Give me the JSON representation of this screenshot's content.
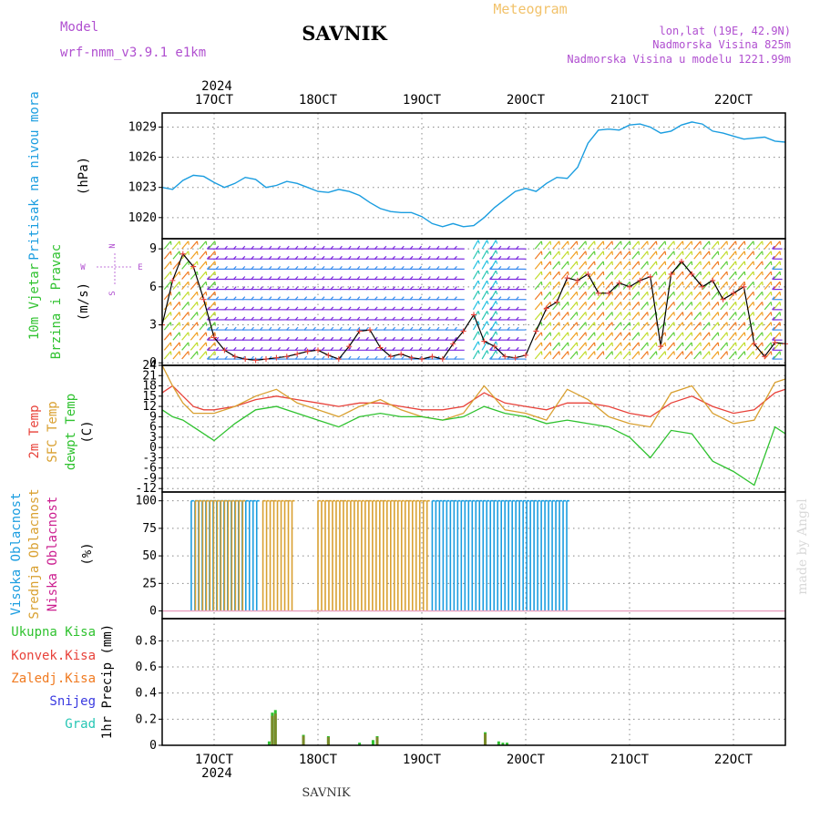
{
  "header": {
    "model_label": "Model",
    "model_name": "wrf-nmm_v3.9.1 e1km",
    "station": "SAVNIK",
    "meteogram": "Meteogram",
    "coords": "lon,lat (19E, 42.9N)",
    "elevation": "Nadmorska Visina 825m",
    "model_elevation": "Nadmorska Visina u modelu 1221.99m",
    "footer_station": "SAVNIK",
    "watermark": "made by Angel",
    "year_top": "2024",
    "year_bottom": "2024"
  },
  "colors": {
    "pressure": "#1a9de0",
    "temp2m": "#e8423a",
    "sfc": "#d9a030",
    "dew": "#2fc22f",
    "high_cloud": "#1a9de0",
    "mid_cloud": "#d9a030",
    "low_cloud": "#cc2090",
    "precip_total": "#2fc22f",
    "precip_conv": "#e8423a",
    "precip_frz": "#f07a20",
    "snow": "#3a3ae0",
    "grad": "#26c6b4",
    "purple_text": "#b04fd0"
  },
  "chart_data": [
    {
      "type": "line",
      "panel": "pressure",
      "ylabel": [
        "Pritisak na nivou mora",
        "(hPa)"
      ],
      "x_ticks": [
        "17OCT",
        "18OCT",
        "19OCT",
        "20OCT",
        "21OCT",
        "22OCT"
      ],
      "yticks": [
        1020,
        1023,
        1026,
        1029
      ],
      "ylim": [
        1017.9,
        1030.4
      ],
      "x_range_days": [
        16.5,
        22.5
      ],
      "grid": true,
      "series": [
        {
          "points": [
            [
              16.5,
              1023.0
            ],
            [
              16.6,
              1022.8
            ],
            [
              16.7,
              1023.7
            ],
            [
              16.8,
              1024.2
            ],
            [
              16.9,
              1024.1
            ],
            [
              17.0,
              1023.5
            ],
            [
              17.1,
              1023.0
            ],
            [
              17.2,
              1023.4
            ],
            [
              17.3,
              1024.0
            ],
            [
              17.4,
              1023.8
            ],
            [
              17.5,
              1023.0
            ],
            [
              17.6,
              1023.2
            ],
            [
              17.7,
              1023.6
            ],
            [
              17.8,
              1023.4
            ],
            [
              17.9,
              1023.0
            ],
            [
              18.0,
              1022.6
            ],
            [
              18.1,
              1022.5
            ],
            [
              18.2,
              1022.8
            ],
            [
              18.3,
              1022.6
            ],
            [
              18.4,
              1022.2
            ],
            [
              18.5,
              1021.5
            ],
            [
              18.6,
              1020.9
            ],
            [
              18.7,
              1020.6
            ],
            [
              18.8,
              1020.5
            ],
            [
              18.9,
              1020.5
            ],
            [
              19.0,
              1020.1
            ],
            [
              19.1,
              1019.4
            ],
            [
              19.2,
              1019.1
            ],
            [
              19.3,
              1019.4
            ],
            [
              19.4,
              1019.1
            ],
            [
              19.5,
              1019.2
            ],
            [
              19.6,
              1020.0
            ],
            [
              19.7,
              1021.0
            ],
            [
              19.8,
              1021.8
            ],
            [
              19.9,
              1022.6
            ],
            [
              20.0,
              1022.9
            ],
            [
              20.1,
              1022.6
            ],
            [
              20.2,
              1023.4
            ],
            [
              20.3,
              1024.0
            ],
            [
              20.4,
              1023.9
            ],
            [
              20.5,
              1025.0
            ],
            [
              20.6,
              1027.4
            ],
            [
              20.7,
              1028.7
            ],
            [
              20.8,
              1028.8
            ],
            [
              20.9,
              1028.7
            ],
            [
              21.0,
              1029.2
            ],
            [
              21.1,
              1029.3
            ],
            [
              21.2,
              1029.0
            ],
            [
              21.3,
              1028.4
            ],
            [
              21.4,
              1028.6
            ],
            [
              21.5,
              1029.2
            ],
            [
              21.6,
              1029.5
            ],
            [
              21.7,
              1029.3
            ],
            [
              21.8,
              1028.6
            ],
            [
              21.9,
              1028.4
            ],
            [
              22.0,
              1028.1
            ],
            [
              22.1,
              1027.8
            ],
            [
              22.2,
              1027.9
            ],
            [
              22.3,
              1028.0
            ],
            [
              22.4,
              1027.6
            ],
            [
              22.5,
              1027.5
            ]
          ]
        }
      ]
    },
    {
      "type": "line",
      "panel": "wind",
      "ylabel": [
        "10m Vjetar",
        "Brzina i Pravac",
        "(m/s)"
      ],
      "compass": [
        "N",
        "W",
        "E",
        "S"
      ],
      "yticks": [
        0,
        3,
        6,
        9
      ],
      "ylim": [
        -0.2,
        9.8
      ],
      "grid": true,
      "series": [
        {
          "name": "speed",
          "color": "#000000",
          "points": [
            [
              16.5,
              3.0
            ],
            [
              16.6,
              6.5
            ],
            [
              16.7,
              8.6
            ],
            [
              16.8,
              7.6
            ],
            [
              16.9,
              5.0
            ],
            [
              17.0,
              2.0
            ],
            [
              17.1,
              1.0
            ],
            [
              17.2,
              0.5
            ],
            [
              17.3,
              0.3
            ],
            [
              17.4,
              0.2
            ],
            [
              17.5,
              0.3
            ],
            [
              17.6,
              0.4
            ],
            [
              17.7,
              0.5
            ],
            [
              17.8,
              0.7
            ],
            [
              17.9,
              0.9
            ],
            [
              18.0,
              1.0
            ],
            [
              18.1,
              0.6
            ],
            [
              18.2,
              0.3
            ],
            [
              18.3,
              1.3
            ],
            [
              18.4,
              2.5
            ],
            [
              18.5,
              2.6
            ],
            [
              18.6,
              1.2
            ],
            [
              18.7,
              0.5
            ],
            [
              18.8,
              0.7
            ],
            [
              18.9,
              0.4
            ],
            [
              19.0,
              0.3
            ],
            [
              19.1,
              0.5
            ],
            [
              19.2,
              0.3
            ],
            [
              19.3,
              1.5
            ],
            [
              19.4,
              2.5
            ],
            [
              19.5,
              3.8
            ],
            [
              19.6,
              1.7
            ],
            [
              19.7,
              1.3
            ],
            [
              19.8,
              0.5
            ],
            [
              19.9,
              0.4
            ],
            [
              20.0,
              0.6
            ],
            [
              20.1,
              2.5
            ],
            [
              20.2,
              4.3
            ],
            [
              20.3,
              4.8
            ],
            [
              20.4,
              6.7
            ],
            [
              20.5,
              6.5
            ],
            [
              20.6,
              7.0
            ],
            [
              20.7,
              5.5
            ],
            [
              20.8,
              5.5
            ],
            [
              20.9,
              6.3
            ],
            [
              21.0,
              6.0
            ],
            [
              21.1,
              6.5
            ],
            [
              21.2,
              6.8
            ],
            [
              21.3,
              1.3
            ],
            [
              21.4,
              7.0
            ],
            [
              21.5,
              8.0
            ],
            [
              21.6,
              7.0
            ],
            [
              21.7,
              6.0
            ],
            [
              21.8,
              6.5
            ],
            [
              21.9,
              5.0
            ],
            [
              22.0,
              5.5
            ],
            [
              22.1,
              6.0
            ],
            [
              22.2,
              1.5
            ],
            [
              22.3,
              0.5
            ],
            [
              22.4,
              1.6
            ],
            [
              22.5,
              1.5
            ]
          ]
        }
      ]
    },
    {
      "type": "line",
      "panel": "temperature",
      "ylabel": [
        "2m Temp",
        "SFC Temp",
        "dewpt Temp",
        "(C)"
      ],
      "yticks": [
        -12,
        -9,
        -6,
        -3,
        0,
        3,
        6,
        9,
        12,
        15,
        18,
        21,
        24
      ],
      "ylim": [
        -13,
        24
      ],
      "grid": true,
      "series": [
        {
          "name": "2m Temp",
          "points": [
            [
              16.5,
              16
            ],
            [
              16.6,
              18
            ],
            [
              16.7,
              15
            ],
            [
              16.8,
              12
            ],
            [
              16.9,
              11
            ],
            [
              17.0,
              11
            ],
            [
              17.2,
              12
            ],
            [
              17.4,
              14
            ],
            [
              17.6,
              15
            ],
            [
              17.8,
              14
            ],
            [
              18.0,
              13
            ],
            [
              18.2,
              12
            ],
            [
              18.4,
              13
            ],
            [
              18.6,
              13
            ],
            [
              18.8,
              12
            ],
            [
              19.0,
              11
            ],
            [
              19.2,
              11
            ],
            [
              19.4,
              12
            ],
            [
              19.6,
              16
            ],
            [
              19.8,
              13
            ],
            [
              20.0,
              12
            ],
            [
              20.2,
              11
            ],
            [
              20.4,
              13
            ],
            [
              20.6,
              13
            ],
            [
              20.8,
              12
            ],
            [
              21.0,
              10
            ],
            [
              21.2,
              9
            ],
            [
              21.4,
              13
            ],
            [
              21.6,
              15
            ],
            [
              21.8,
              12
            ],
            [
              22.0,
              10
            ],
            [
              22.2,
              11
            ],
            [
              22.4,
              16
            ],
            [
              22.5,
              17
            ]
          ]
        },
        {
          "name": "SFC Temp",
          "points": [
            [
              16.5,
              24
            ],
            [
              16.6,
              18
            ],
            [
              16.7,
              13
            ],
            [
              16.8,
              10
            ],
            [
              17.0,
              10
            ],
            [
              17.2,
              12
            ],
            [
              17.4,
              15
            ],
            [
              17.6,
              17
            ],
            [
              17.8,
              13
            ],
            [
              18.0,
              11
            ],
            [
              18.2,
              9
            ],
            [
              18.4,
              12
            ],
            [
              18.6,
              14
            ],
            [
              18.8,
              11
            ],
            [
              19.0,
              9
            ],
            [
              19.2,
              8
            ],
            [
              19.4,
              10
            ],
            [
              19.6,
              18
            ],
            [
              19.8,
              11
            ],
            [
              20.0,
              10
            ],
            [
              20.2,
              8
            ],
            [
              20.4,
              17
            ],
            [
              20.6,
              14
            ],
            [
              20.8,
              9
            ],
            [
              21.0,
              7
            ],
            [
              21.2,
              6
            ],
            [
              21.4,
              16
            ],
            [
              21.6,
              18
            ],
            [
              21.8,
              10
            ],
            [
              22.0,
              7
            ],
            [
              22.2,
              8
            ],
            [
              22.4,
              19
            ],
            [
              22.5,
              20
            ]
          ]
        },
        {
          "name": "dewpt Temp",
          "points": [
            [
              16.5,
              11
            ],
            [
              16.6,
              9
            ],
            [
              16.7,
              8
            ],
            [
              16.8,
              6
            ],
            [
              16.9,
              4
            ],
            [
              17.0,
              2
            ],
            [
              17.2,
              7
            ],
            [
              17.4,
              11
            ],
            [
              17.6,
              12
            ],
            [
              17.8,
              10
            ],
            [
              18.0,
              8
            ],
            [
              18.2,
              6
            ],
            [
              18.4,
              9
            ],
            [
              18.6,
              10
            ],
            [
              18.8,
              9
            ],
            [
              19.0,
              9
            ],
            [
              19.2,
              8
            ],
            [
              19.4,
              9
            ],
            [
              19.6,
              12
            ],
            [
              19.8,
              10
            ],
            [
              20.0,
              9
            ],
            [
              20.2,
              7
            ],
            [
              20.4,
              8
            ],
            [
              20.6,
              7
            ],
            [
              20.8,
              6
            ],
            [
              21.0,
              3
            ],
            [
              21.2,
              -3
            ],
            [
              21.4,
              5
            ],
            [
              21.6,
              4
            ],
            [
              21.8,
              -4
            ],
            [
              22.0,
              -7
            ],
            [
              22.2,
              -11
            ],
            [
              22.4,
              6
            ],
            [
              22.5,
              4
            ]
          ]
        }
      ]
    },
    {
      "type": "bar",
      "panel": "clouds",
      "ylabel": [
        "Visoka Oblacnost",
        "Srednja Oblacnost",
        "Niska Oblacnost",
        "(%)"
      ],
      "yticks": [
        0,
        25,
        50,
        75,
        100
      ],
      "ylim": [
        -7,
        108
      ],
      "grid": true,
      "series": [
        {
          "name": "Visoka Oblacnost",
          "ranges": [
            [
              16.78,
              17.44,
              100
            ],
            [
              19.1,
              20.4,
              100
            ]
          ]
        },
        {
          "name": "Srednja Oblacnost",
          "ranges": [
            [
              16.82,
              17.3,
              100
            ],
            [
              17.47,
              17.75,
              100
            ],
            [
              17.93,
              18.0,
              0
            ],
            [
              18.0,
              19.08,
              100
            ]
          ]
        },
        {
          "name": "Niska Oblacnost",
          "ranges": []
        }
      ]
    },
    {
      "type": "bar",
      "panel": "precip",
      "ylabel": [
        "1hr Precip (mm)"
      ],
      "legend": [
        "Ukupna Kisa",
        "Konvek.Kisa",
        "Zaledj.Kisa",
        "Snijeg",
        "Grad"
      ],
      "yticks": [
        0,
        0.2,
        0.4,
        0.6,
        0.8
      ],
      "ylim": [
        0,
        0.97
      ],
      "grid": true,
      "bars": [
        [
          17.53,
          0.03
        ],
        [
          17.56,
          0.25
        ],
        [
          17.59,
          0.27
        ],
        [
          17.86,
          0.08
        ],
        [
          18.1,
          0.07
        ],
        [
          18.4,
          0.02
        ],
        [
          18.53,
          0.04
        ],
        [
          18.57,
          0.07
        ],
        [
          19.61,
          0.1
        ],
        [
          19.74,
          0.03
        ],
        [
          19.78,
          0.02
        ],
        [
          19.82,
          0.02
        ]
      ]
    }
  ]
}
